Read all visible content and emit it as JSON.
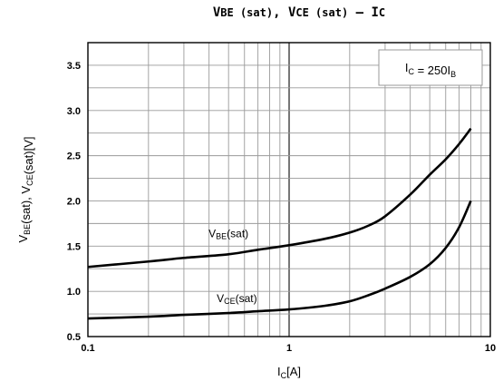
{
  "chart_data": {
    "type": "line",
    "title": {
      "parts": [
        {
          "text": "V",
          "sub": "BE (sat)"
        },
        {
          "text": ", "
        },
        {
          "text": "V",
          "sub": "CE (sat)"
        },
        {
          "text": "  —  "
        },
        {
          "text": "I",
          "sub": "C"
        }
      ]
    },
    "xlabel": {
      "main": "I",
      "sub": "C",
      "suffix": "[A]"
    },
    "ylabel": {
      "parts": [
        {
          "text": "V",
          "sub": "BE"
        },
        {
          "text": "(sat), "
        },
        {
          "text": "V",
          "sub": "CE"
        },
        {
          "text": "(sat)[V]"
        }
      ]
    },
    "xscale": "log",
    "xlim": [
      0.1,
      10
    ],
    "ylim": [
      0.5,
      3.75
    ],
    "x_ticks": [
      {
        "value": 0.1,
        "label": "0.1"
      },
      {
        "value": 1,
        "label": "1"
      },
      {
        "value": 10,
        "label": "10"
      }
    ],
    "y_ticks": [
      {
        "value": 0.5,
        "label": "0.5"
      },
      {
        "value": 1.0,
        "label": "1.0"
      },
      {
        "value": 1.5,
        "label": "1.5"
      },
      {
        "value": 2.0,
        "label": "2.0"
      },
      {
        "value": 2.5,
        "label": "2.5"
      },
      {
        "value": 3.0,
        "label": "3.0"
      },
      {
        "value": 3.5,
        "label": "3.5"
      }
    ],
    "grid": true,
    "annotation": {
      "parts": [
        {
          "text": "I",
          "sub": "C"
        },
        {
          "text": " = 250I"
        },
        {
          "text": "",
          "sub": "B"
        }
      ],
      "placement": "top-right"
    },
    "series": [
      {
        "label": {
          "main": "V",
          "sub": "BE",
          "suffix": "(sat)"
        },
        "x": [
          0.1,
          0.2,
          0.3,
          0.5,
          0.7,
          1.0,
          1.5,
          2.0,
          2.5,
          3.0,
          4.0,
          5.0,
          6.0,
          7.0,
          8.0
        ],
        "y": [
          1.27,
          1.33,
          1.37,
          1.41,
          1.46,
          1.51,
          1.58,
          1.65,
          1.73,
          1.83,
          2.07,
          2.29,
          2.46,
          2.63,
          2.8
        ]
      },
      {
        "label": {
          "main": "V",
          "sub": "CE",
          "suffix": "(sat)"
        },
        "x": [
          0.1,
          0.2,
          0.3,
          0.5,
          0.7,
          1.0,
          1.5,
          2.0,
          2.5,
          3.0,
          4.0,
          5.0,
          6.0,
          7.0,
          8.0
        ],
        "y": [
          0.7,
          0.72,
          0.74,
          0.76,
          0.78,
          0.8,
          0.84,
          0.89,
          0.96,
          1.03,
          1.16,
          1.3,
          1.48,
          1.71,
          2.0
        ]
      }
    ]
  }
}
